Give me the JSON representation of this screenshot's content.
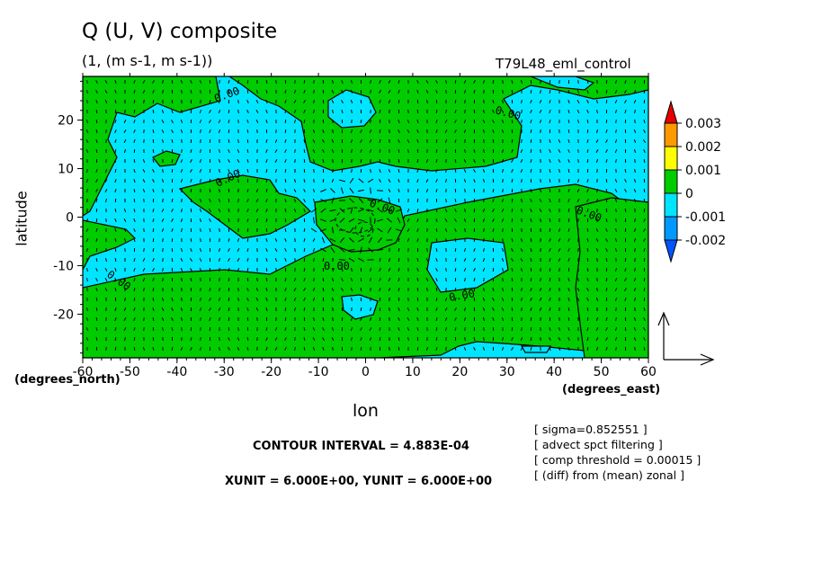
{
  "title": "Q (U, V) composite",
  "subtitle": "(1, (m s-1, m s-1))",
  "run_name": "T79L48_eml_control",
  "x_axis_title": "lon",
  "x_unit_label": "(degrees_east)",
  "y_axis_title": "latitude",
  "y_unit_label": "(degrees_north)",
  "contour_interval_text": "CONTOUR INTERVAL = 4.883E-04",
  "unit_text": "XUNIT = 6.000E+00, YUNIT = 6.000E+00",
  "notes": [
    "[ sigma=0.852551 ]",
    "[ advect spct filtering ]",
    "[ comp threshold = 0.00015 ]",
    "[ (diff) from (mean) zonal ]"
  ],
  "colors": {
    "positive_fill": "#00cc00",
    "negative_fill": "#00e5ff",
    "scale_red": "#e60000",
    "scale_orange": "#ff9900",
    "scale_yellow": "#ffff00",
    "scale_green": "#00cc00",
    "scale_cyan": "#00e5ff",
    "scale_blue": "#0099ff",
    "scale_darkblue": "#0055ff"
  },
  "chart_data": {
    "type": "contour",
    "xlim": [
      -60,
      60
    ],
    "ylim": [
      -29,
      29
    ],
    "x_ticks": [
      -60,
      -50,
      -40,
      -30,
      -20,
      -10,
      0,
      10,
      20,
      30,
      40,
      50,
      60
    ],
    "y_ticks": [
      -20,
      -10,
      0,
      10,
      20
    ],
    "contour_labels": [
      "0.00",
      "0.00",
      "0.00",
      "0.00",
      "0.00",
      "0.00",
      "0.00",
      "0.00"
    ],
    "colorbar": {
      "levels": [
        "0.003",
        "0.002",
        "0.001",
        "0",
        "-0.001",
        "-0.002"
      ]
    },
    "vector_field": "U, V wind vectors overlaid on grid"
  }
}
